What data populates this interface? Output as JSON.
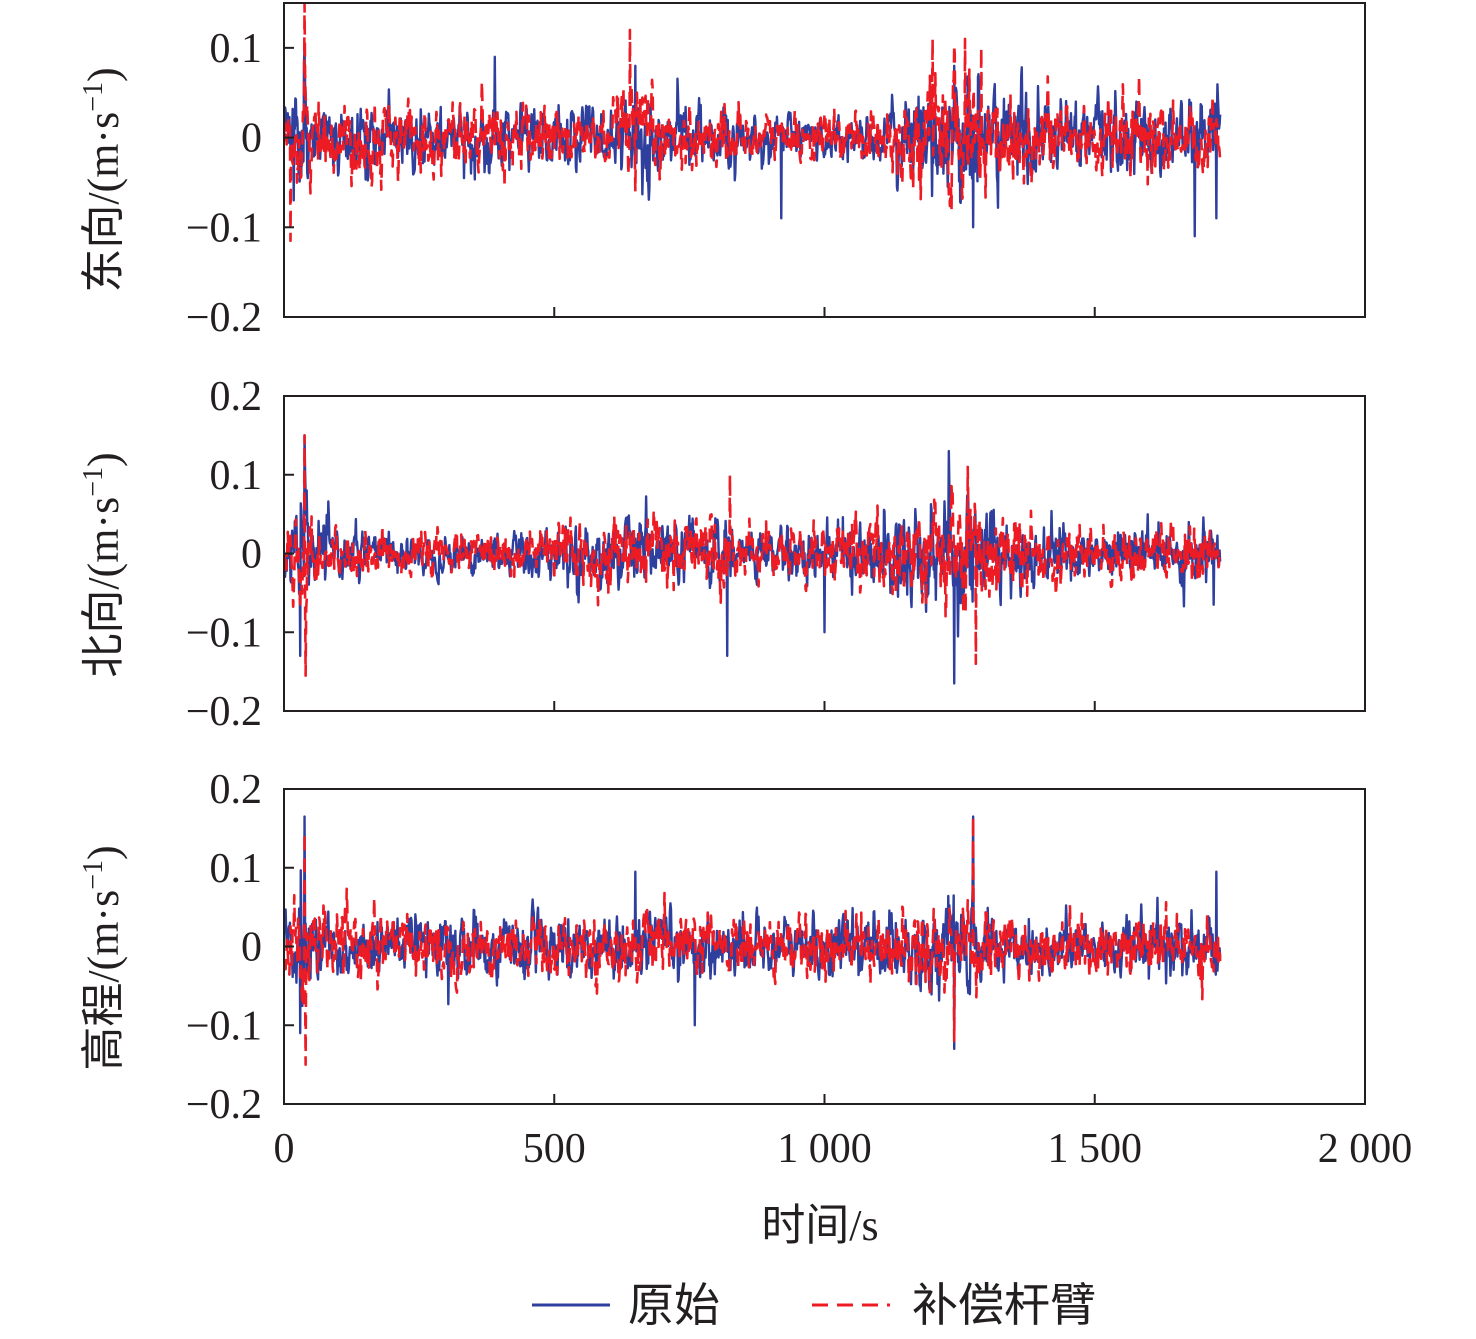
{
  "chart_data": [
    {
      "type": "line",
      "ylabel": "东向/(m·s",
      "ylabel_sup": "−1",
      "ylabel_close": ")",
      "ylim": [
        -0.2,
        0.15
      ],
      "yticks": [
        -0.2,
        -0.1,
        0,
        0.1
      ],
      "ytick_labels": [
        "−0.2",
        "−0.1",
        "0",
        "0.1"
      ],
      "xlim": [
        0,
        2000
      ],
      "series": [
        {
          "name": "原始",
          "color": "#2e3f9e",
          "dash": "solid",
          "x": [
            0,
            25,
            38,
            50,
            100,
            150,
            200,
            250,
            300,
            350,
            400,
            450,
            500,
            550,
            600,
            650,
            700,
            750,
            800,
            850,
            900,
            950,
            1000,
            1050,
            1100,
            1150,
            1200,
            1250,
            1300,
            1350,
            1400,
            1450,
            1500,
            1550,
            1600,
            1650,
            1700,
            1730
          ],
          "amp": [
            0.03,
            0.06,
            0.09,
            0.05,
            0.04,
            0.05,
            0.045,
            0.04,
            0.045,
            0.04,
            0.05,
            0.04,
            0.045,
            0.04,
            0.04,
            0.065,
            0.045,
            0.04,
            0.04,
            0.035,
            0.03,
            0.03,
            0.03,
            0.03,
            0.03,
            0.055,
            0.07,
            0.09,
            0.075,
            0.065,
            0.06,
            0.055,
            0.05,
            0.05,
            0.05,
            0.045,
            0.055,
            0.04
          ],
          "peaks_x": [
            18,
            38,
            390,
            650,
            920,
            1240,
            1275,
            1685,
            1725
          ],
          "peaks_y": [
            -0.07,
            0.1,
            0.09,
            0.08,
            -0.09,
            0.08,
            -0.1,
            -0.11,
            -0.09
          ]
        },
        {
          "name": "补偿杆臂",
          "color": "#ed1c24",
          "dash": "dashed",
          "x": [
            0,
            25,
            38,
            50,
            100,
            150,
            200,
            250,
            300,
            350,
            400,
            450,
            500,
            550,
            600,
            650,
            700,
            750,
            800,
            850,
            900,
            950,
            1000,
            1050,
            1100,
            1150,
            1200,
            1250,
            1300,
            1350,
            1400,
            1450,
            1500,
            1550,
            1600,
            1650,
            1700,
            1730
          ],
          "amp": [
            0.03,
            0.06,
            0.1,
            0.05,
            0.04,
            0.05,
            0.045,
            0.04,
            0.045,
            0.04,
            0.05,
            0.04,
            0.045,
            0.04,
            0.04,
            0.065,
            0.045,
            0.04,
            0.04,
            0.035,
            0.03,
            0.03,
            0.03,
            0.03,
            0.03,
            0.055,
            0.075,
            0.09,
            0.075,
            0.065,
            0.06,
            0.055,
            0.05,
            0.05,
            0.05,
            0.045,
            0.05,
            0.04
          ],
          "peaks_x": [
            12,
            38,
            640,
            650,
            1200,
            1260,
            1290
          ],
          "peaks_y": [
            -0.115,
            0.15,
            0.12,
            -0.06,
            0.11,
            0.11,
            0.1
          ]
        }
      ]
    },
    {
      "type": "line",
      "ylabel": "北向/(m·s",
      "ylabel_sup": "−1",
      "ylabel_close": ")",
      "ylim": [
        -0.2,
        0.2
      ],
      "yticks": [
        -0.2,
        -0.1,
        0,
        0.1,
        0.2
      ],
      "ytick_labels": [
        "−0.2",
        "−0.1",
        "0",
        "0.1",
        "0.2"
      ],
      "xlim": [
        0,
        2000
      ],
      "series": [
        {
          "name": "原始",
          "color": "#2e3f9e",
          "dash": "solid",
          "x": [
            0,
            25,
            38,
            50,
            100,
            150,
            200,
            250,
            300,
            350,
            400,
            450,
            500,
            550,
            600,
            650,
            700,
            750,
            800,
            850,
            900,
            950,
            1000,
            1050,
            1100,
            1150,
            1200,
            1250,
            1300,
            1350,
            1400,
            1450,
            1500,
            1550,
            1600,
            1650,
            1700,
            1730
          ],
          "amp": [
            0.04,
            0.07,
            0.1,
            0.05,
            0.035,
            0.03,
            0.03,
            0.03,
            0.03,
            0.03,
            0.035,
            0.035,
            0.04,
            0.045,
            0.05,
            0.05,
            0.045,
            0.05,
            0.06,
            0.04,
            0.035,
            0.04,
            0.045,
            0.05,
            0.05,
            0.07,
            0.09,
            0.1,
            0.08,
            0.06,
            0.05,
            0.04,
            0.035,
            0.035,
            0.04,
            0.05,
            0.05,
            0.045
          ],
          "peaks_x": [
            30,
            38,
            820,
            1000,
            1230,
            1240,
            1720
          ],
          "peaks_y": [
            -0.13,
            0.15,
            -0.13,
            -0.1,
            0.13,
            -0.165,
            -0.065
          ]
        },
        {
          "name": "补偿杆臂",
          "color": "#ed1c24",
          "dash": "dashed",
          "x": [
            0,
            25,
            38,
            50,
            100,
            150,
            200,
            250,
            300,
            350,
            400,
            450,
            500,
            550,
            600,
            650,
            700,
            750,
            800,
            850,
            900,
            950,
            1000,
            1050,
            1100,
            1150,
            1200,
            1250,
            1300,
            1350,
            1400,
            1450,
            1500,
            1550,
            1600,
            1650,
            1700,
            1730
          ],
          "amp": [
            0.04,
            0.07,
            0.1,
            0.05,
            0.035,
            0.03,
            0.03,
            0.03,
            0.03,
            0.03,
            0.035,
            0.035,
            0.04,
            0.045,
            0.05,
            0.05,
            0.045,
            0.05,
            0.06,
            0.04,
            0.035,
            0.04,
            0.045,
            0.05,
            0.05,
            0.07,
            0.085,
            0.1,
            0.08,
            0.06,
            0.05,
            0.04,
            0.035,
            0.035,
            0.04,
            0.05,
            0.045,
            0.04
          ],
          "peaks_x": [
            38,
            40,
            825,
            1265,
            1280
          ],
          "peaks_y": [
            0.15,
            -0.155,
            0.1,
            0.11,
            -0.14
          ]
        }
      ]
    },
    {
      "type": "line",
      "ylabel": "高程/(m·s",
      "ylabel_sup": "−1",
      "ylabel_close": ")",
      "ylim": [
        -0.2,
        0.2
      ],
      "yticks": [
        -0.2,
        -0.1,
        0,
        0.1,
        0.2
      ],
      "ytick_labels": [
        "−0.2",
        "−0.1",
        "0",
        "0.1",
        "0.2"
      ],
      "xlim": [
        0,
        2000
      ],
      "xticks": [
        0,
        500,
        1000,
        1500,
        2000
      ],
      "xtick_labels": [
        "0",
        "500",
        "1 000",
        "1 500",
        "2 000"
      ],
      "xlabel": "时间/s",
      "series": [
        {
          "name": "原始",
          "color": "#2e3f9e",
          "dash": "solid",
          "x": [
            0,
            25,
            38,
            50,
            100,
            150,
            200,
            250,
            300,
            350,
            400,
            450,
            500,
            550,
            600,
            650,
            700,
            750,
            800,
            850,
            900,
            950,
            1000,
            1050,
            1100,
            1150,
            1200,
            1250,
            1300,
            1350,
            1400,
            1450,
            1500,
            1550,
            1600,
            1650,
            1700,
            1730
          ],
          "amp": [
            0.04,
            0.07,
            0.1,
            0.05,
            0.045,
            0.045,
            0.045,
            0.045,
            0.045,
            0.045,
            0.045,
            0.045,
            0.045,
            0.04,
            0.045,
            0.05,
            0.045,
            0.045,
            0.045,
            0.045,
            0.045,
            0.045,
            0.045,
            0.045,
            0.045,
            0.05,
            0.065,
            0.07,
            0.055,
            0.05,
            0.045,
            0.045,
            0.045,
            0.045,
            0.045,
            0.045,
            0.055,
            0.05
          ],
          "peaks_x": [
            30,
            38,
            650,
            760,
            1240,
            1275,
            1725
          ],
          "peaks_y": [
            -0.11,
            0.165,
            0.095,
            -0.1,
            -0.13,
            0.165,
            0.095
          ]
        },
        {
          "name": "补偿杆臂",
          "color": "#ed1c24",
          "dash": "dashed",
          "x": [
            0,
            25,
            38,
            50,
            100,
            150,
            200,
            250,
            300,
            350,
            400,
            450,
            500,
            550,
            600,
            650,
            700,
            750,
            800,
            850,
            900,
            950,
            1000,
            1050,
            1100,
            1150,
            1200,
            1250,
            1300,
            1350,
            1400,
            1450,
            1500,
            1550,
            1600,
            1650,
            1700,
            1730
          ],
          "amp": [
            0.04,
            0.07,
            0.1,
            0.05,
            0.045,
            0.045,
            0.045,
            0.045,
            0.045,
            0.045,
            0.045,
            0.045,
            0.045,
            0.04,
            0.045,
            0.05,
            0.045,
            0.045,
            0.045,
            0.045,
            0.045,
            0.045,
            0.045,
            0.045,
            0.045,
            0.05,
            0.065,
            0.07,
            0.055,
            0.05,
            0.045,
            0.045,
            0.045,
            0.045,
            0.045,
            0.045,
            0.05,
            0.05
          ],
          "peaks_x": [
            40,
            38,
            1240,
            1275
          ],
          "peaks_y": [
            -0.15,
            0.145,
            -0.12,
            0.165
          ]
        }
      ]
    }
  ],
  "legend": {
    "placement": "bottom-center",
    "items": [
      {
        "label": "原始",
        "color": "#2e3f9e",
        "dash": "solid"
      },
      {
        "label": "补偿杆臂",
        "color": "#ed1c24",
        "dash": "dashed"
      }
    ]
  }
}
